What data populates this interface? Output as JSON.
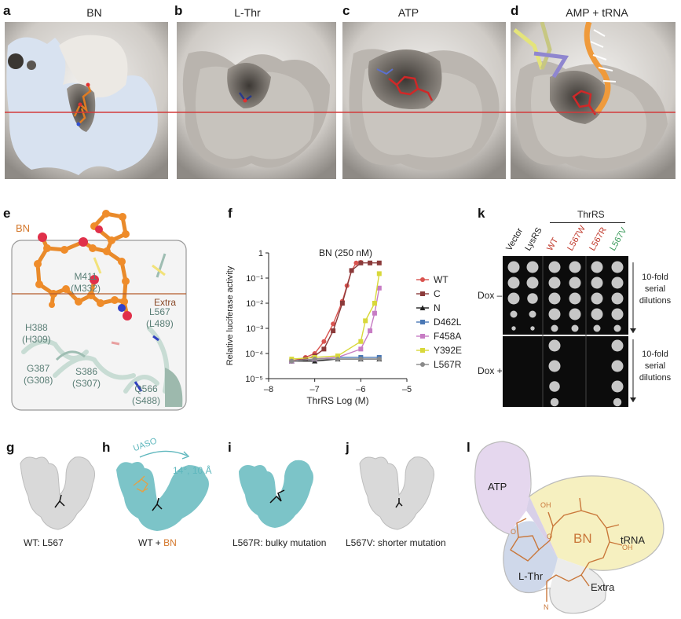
{
  "panels": {
    "a": {
      "label": "a",
      "title": "BN"
    },
    "b": {
      "label": "b",
      "title": "L-Thr"
    },
    "c": {
      "label": "c",
      "title": "ATP"
    },
    "d": {
      "label": "d",
      "title": "AMP + tRNA"
    },
    "e": {
      "label": "e",
      "ligand": "BN",
      "extra": "Extra",
      "residues": [
        {
          "name": "M411",
          "alt": "(M332)"
        },
        {
          "name": "L567",
          "alt": "(L489)"
        },
        {
          "name": "H388",
          "alt": "(H309)"
        },
        {
          "name": "G387",
          "alt": "(G308)"
        },
        {
          "name": "S386",
          "alt": "(S307)"
        },
        {
          "name": "Q566",
          "alt": "(S488)"
        }
      ]
    },
    "f": {
      "label": "f"
    },
    "g": {
      "label": "g",
      "caption": "WT: L567"
    },
    "h": {
      "label": "h",
      "caption_a": "WT + ",
      "caption_b": "BN",
      "arrow": "UASO",
      "motion": "14°, 10 Å"
    },
    "i": {
      "label": "i",
      "caption": "L567R: bulky mutation"
    },
    "j": {
      "label": "j",
      "caption": "L567V: shorter mutation"
    },
    "k": {
      "label": "k",
      "group": "ThrRS",
      "columns": [
        {
          "name": "Vector",
          "color": "#222222"
        },
        {
          "name": "LysRS",
          "color": "#222222"
        },
        {
          "name": "WT",
          "color": "#c0392b"
        },
        {
          "name": "L567W",
          "color": "#c0392b"
        },
        {
          "name": "L567R",
          "color": "#c0392b"
        },
        {
          "name": "L567V",
          "color": "#3a9a5a"
        }
      ],
      "rows": [
        {
          "name": "Dox –"
        },
        {
          "name": "Dox +"
        }
      ],
      "note_line1": "10-fold",
      "note_line2": "serial",
      "note_line3": "dilutions"
    },
    "l": {
      "label": "l",
      "regions": {
        "atp": "ATP",
        "lthr": "L-Thr",
        "bn": "BN",
        "trna": "tRNA",
        "extra": "Extra"
      },
      "atoms": {
        "oh1": "OH",
        "oh2": "OH",
        "o1": "O",
        "o2": "O",
        "n": "N"
      }
    }
  },
  "chart_data": {
    "type": "line",
    "title": "BN (250 nM)",
    "xlabel": "ThrRS Log (M)",
    "ylabel": "Relative luciferase activity",
    "xlim": [
      -8,
      -5
    ],
    "ylim_log10": [
      -5,
      0
    ],
    "x_ticks": [
      "–8",
      "–7",
      "–6",
      "–5"
    ],
    "y_ticks": [
      "10⁻⁵",
      "10⁻⁴",
      "10⁻³",
      "10⁻²",
      "10⁻¹",
      "1"
    ],
    "legend_position": "right",
    "series": [
      {
        "name": "WT",
        "color": "#d9534f",
        "marker": "circle",
        "points": [
          [
            -7.5,
            5e-05
          ],
          [
            -7.2,
            7e-05
          ],
          [
            -7.0,
            0.0001
          ],
          [
            -6.8,
            0.0003
          ],
          [
            -6.6,
            0.0015
          ],
          [
            -6.4,
            0.012
          ],
          [
            -6.3,
            0.05
          ],
          [
            -6.2,
            0.2
          ],
          [
            -6.1,
            0.4
          ],
          [
            -6.0,
            0.42
          ]
        ]
      },
      {
        "name": "C",
        "color": "#8b3a3a",
        "marker": "square",
        "points": [
          [
            -7.5,
            5e-05
          ],
          [
            -7.2,
            6e-05
          ],
          [
            -7.0,
            8e-05
          ],
          [
            -6.8,
            0.00015
          ],
          [
            -6.6,
            0.0008
          ],
          [
            -6.4,
            0.01
          ],
          [
            -6.2,
            0.2
          ],
          [
            -6.0,
            0.4
          ],
          [
            -5.8,
            0.4
          ],
          [
            -5.6,
            0.4
          ]
        ]
      },
      {
        "name": "N",
        "color": "#222222",
        "marker": "triangle",
        "points": [
          [
            -7.5,
            5e-05
          ],
          [
            -7.0,
            5e-05
          ],
          [
            -6.5,
            6e-05
          ],
          [
            -6.0,
            6e-05
          ],
          [
            -5.6,
            6e-05
          ]
        ]
      },
      {
        "name": "D462L",
        "color": "#4a78b5",
        "marker": "square",
        "points": [
          [
            -7.5,
            5e-05
          ],
          [
            -7.0,
            6e-05
          ],
          [
            -6.5,
            7e-05
          ],
          [
            -6.0,
            7e-05
          ],
          [
            -5.6,
            7e-05
          ]
        ]
      },
      {
        "name": "F458A",
        "color": "#c77cc4",
        "marker": "square",
        "points": [
          [
            -7.5,
            5e-05
          ],
          [
            -7.0,
            6e-05
          ],
          [
            -6.5,
            7e-05
          ],
          [
            -6.0,
            0.00015
          ],
          [
            -5.8,
            0.0008
          ],
          [
            -5.7,
            0.004
          ],
          [
            -5.6,
            0.04
          ]
        ]
      },
      {
        "name": "Y392E",
        "color": "#d8d83a",
        "marker": "square",
        "points": [
          [
            -7.5,
            6e-05
          ],
          [
            -7.0,
            7e-05
          ],
          [
            -6.5,
            8e-05
          ],
          [
            -6.0,
            0.0003
          ],
          [
            -5.9,
            0.002
          ],
          [
            -5.7,
            0.01
          ],
          [
            -5.6,
            0.15
          ]
        ]
      },
      {
        "name": "L567R",
        "color": "#8a8a8a",
        "marker": "circle",
        "points": [
          [
            -7.5,
            5e-05
          ],
          [
            -7.0,
            6e-05
          ],
          [
            -6.5,
            6e-05
          ],
          [
            -6.0,
            6e-05
          ],
          [
            -5.6,
            6e-05
          ]
        ]
      }
    ]
  }
}
